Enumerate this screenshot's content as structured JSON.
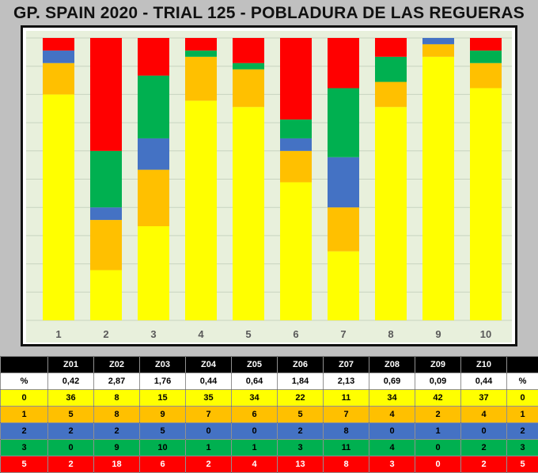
{
  "title": "GP. SPAIN 2020 - TRIAL 125 - POBLADURA DE LAS REGUERAS",
  "chart_data": {
    "type": "bar",
    "stacked": true,
    "normalized": true,
    "categories": [
      "1",
      "2",
      "3",
      "4",
      "5",
      "6",
      "7",
      "8",
      "9",
      "10"
    ],
    "series": [
      {
        "name": "0",
        "color": "#ffff00",
        "values": [
          36,
          8,
          15,
          35,
          34,
          22,
          11,
          34,
          42,
          37
        ]
      },
      {
        "name": "1",
        "color": "#ffc000",
        "values": [
          5,
          8,
          9,
          7,
          6,
          5,
          7,
          4,
          2,
          4
        ]
      },
      {
        "name": "2",
        "color": "#4472c4",
        "values": [
          2,
          2,
          5,
          0,
          0,
          2,
          8,
          0,
          1,
          0
        ]
      },
      {
        "name": "3",
        "color": "#00b050",
        "values": [
          0,
          9,
          10,
          1,
          1,
          3,
          11,
          4,
          0,
          2
        ]
      },
      {
        "name": "5",
        "color": "#ff0000",
        "values": [
          2,
          18,
          6,
          2,
          4,
          13,
          8,
          3,
          0,
          2
        ]
      }
    ],
    "ylim": [
      0,
      100
    ],
    "grid": true,
    "plot_background": "#e8f0dc",
    "gridline_color": "#c8d4c0",
    "legend": "none"
  },
  "table": {
    "header": [
      "",
      "Z01",
      "Z02",
      "Z03",
      "Z04",
      "Z05",
      "Z06",
      "Z07",
      "Z08",
      "Z09",
      "Z10",
      ""
    ],
    "rows": [
      {
        "cls": "row-pct",
        "cells": [
          "%",
          "0,42",
          "2,87",
          "1,76",
          "0,44",
          "0,64",
          "1,84",
          "2,13",
          "0,69",
          "0,09",
          "0,44",
          "%"
        ]
      },
      {
        "cls": "row-l0",
        "cells": [
          "0",
          "36",
          "8",
          "15",
          "35",
          "34",
          "22",
          "11",
          "34",
          "42",
          "37",
          "0"
        ]
      },
      {
        "cls": "row-l1",
        "cells": [
          "1",
          "5",
          "8",
          "9",
          "7",
          "6",
          "5",
          "7",
          "4",
          "2",
          "4",
          "1"
        ]
      },
      {
        "cls": "row-l2",
        "cells": [
          "2",
          "2",
          "2",
          "5",
          "0",
          "0",
          "2",
          "8",
          "0",
          "1",
          "0",
          "2"
        ]
      },
      {
        "cls": "row-l3",
        "cells": [
          "3",
          "0",
          "9",
          "10",
          "1",
          "1",
          "3",
          "11",
          "4",
          "0",
          "2",
          "3"
        ]
      },
      {
        "cls": "row-l5",
        "cells": [
          "5",
          "2",
          "18",
          "6",
          "2",
          "4",
          "13",
          "8",
          "3",
          "0",
          "2",
          "5"
        ]
      }
    ]
  }
}
